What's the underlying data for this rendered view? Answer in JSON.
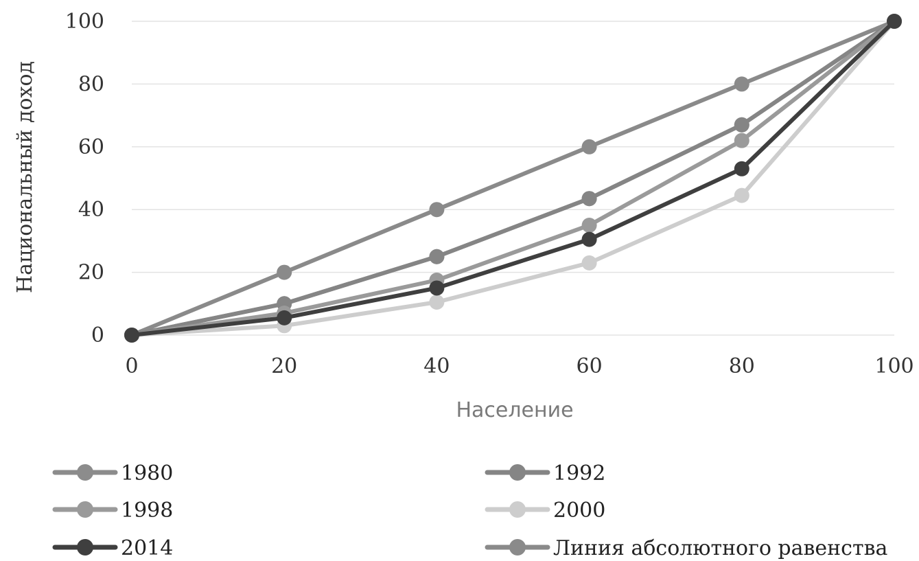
{
  "chart_data": {
    "type": "line",
    "title": "",
    "xlabel": "Население",
    "ylabel": "Национальный доход",
    "x": [
      0,
      20,
      40,
      60,
      80,
      100
    ],
    "xlim": [
      0,
      100
    ],
    "ylim": [
      0,
      100
    ],
    "xticks": [
      "0",
      "20",
      "40",
      "60",
      "80",
      "100"
    ],
    "yticks": [
      "0",
      "20",
      "40",
      "60",
      "80",
      "100"
    ],
    "grid": "horizontal",
    "legend_position": "bottom",
    "series": [
      {
        "name": "1980",
        "color": "#8c8c8c",
        "values": [
          0,
          10,
          25,
          43.5,
          67,
          100
        ]
      },
      {
        "name": "1992",
        "color": "#858585",
        "values": [
          0,
          10,
          25,
          43.5,
          67,
          100
        ]
      },
      {
        "name": "1998",
        "color": "#9a9a9a",
        "values": [
          0,
          7,
          17.5,
          35,
          62,
          100
        ]
      },
      {
        "name": "2000",
        "color": "#cdcdcd",
        "values": [
          0,
          3,
          10.5,
          23,
          44.5,
          100
        ]
      },
      {
        "name": "2014",
        "color": "#3f3f3f",
        "values": [
          0,
          5.5,
          15,
          30.5,
          53,
          100
        ]
      },
      {
        "name": "Линия абсолютного равенства",
        "color": "#8a8a8a",
        "values": [
          0,
          20,
          40,
          60,
          80,
          100
        ]
      }
    ]
  }
}
